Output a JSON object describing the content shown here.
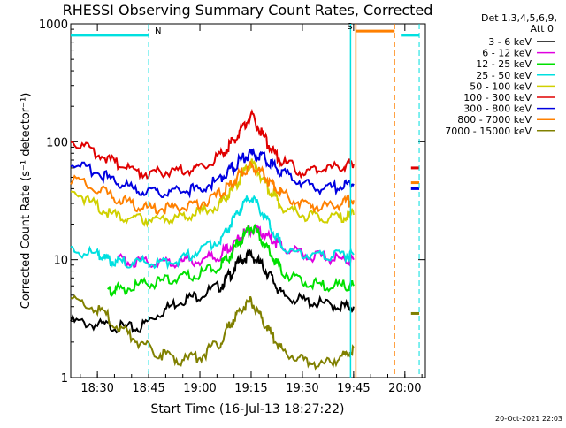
{
  "chart_data": {
    "type": "line",
    "title": "RHESSI Observing Summary Count Rates, Corrected",
    "xlabel": "Start Time (16-Jul-13 18:27:22)",
    "ylabel": "Corrected Count Rate (s⁻¹ detector⁻¹)",
    "ylim": [
      1,
      1000
    ],
    "yscale": "log",
    "xlim_minutes": [
      18.37,
      20.1
    ],
    "x_tick_labels": [
      "18:30",
      "18:45",
      "19:00",
      "19:15",
      "19:30",
      "19:45",
      "20:00"
    ],
    "x_tick_hours": [
      18.5,
      18.75,
      19.0,
      19.25,
      19.5,
      19.75,
      20.0
    ],
    "y_tick_labels": [
      "1",
      "10",
      "100",
      "1000"
    ],
    "y_tick_values": [
      1,
      10,
      100,
      1000
    ],
    "legend_header": [
      "Det 1,3,4,5,6,9,",
      "Att 0"
    ],
    "legend_position": "right",
    "series": [
      {
        "name": "3 - 6 keV",
        "color": "#000000",
        "x": [
          18.37,
          18.5,
          18.6,
          18.7,
          18.8,
          18.9,
          19.0,
          19.1,
          19.15,
          19.2,
          19.25,
          19.3,
          19.35,
          19.4,
          19.5,
          19.6,
          19.7,
          19.75
        ],
        "y": [
          3.0,
          2.8,
          2.7,
          2.6,
          3.5,
          4.5,
          5.0,
          6.0,
          7.5,
          10,
          11,
          9,
          7,
          5,
          4.5,
          4.2,
          4.0,
          4.0
        ]
      },
      {
        "name": "6 - 12 keV",
        "color": "#e000e0",
        "x": [
          18.6,
          18.7,
          18.8,
          18.9,
          19.0,
          19.1,
          19.15,
          19.2,
          19.25,
          19.3,
          19.35,
          19.4,
          19.5,
          19.6,
          19.7,
          19.75
        ],
        "y": [
          10,
          9.5,
          9.5,
          9.5,
          10,
          11,
          13,
          16,
          18,
          17,
          15,
          13,
          11,
          10.5,
          10,
          10
        ]
      },
      {
        "name": "12 - 25 keV",
        "color": "#00e000",
        "x": [
          18.55,
          18.6,
          18.7,
          18.8,
          18.9,
          19.0,
          19.1,
          19.15,
          19.2,
          19.25,
          19.3,
          19.35,
          19.4,
          19.5,
          19.6,
          19.7,
          19.75
        ],
        "y": [
          5.5,
          5.6,
          6.0,
          6.5,
          7.0,
          7.5,
          9,
          11,
          15,
          19,
          15,
          11,
          8,
          6.5,
          6.0,
          6.0,
          6.0
        ]
      },
      {
        "name": "25 - 50 keV",
        "color": "#00e0e0",
        "x": [
          18.37,
          18.5,
          18.55,
          18.6,
          18.7,
          18.8,
          18.9,
          19.0,
          19.1,
          19.15,
          19.2,
          19.25,
          19.3,
          19.35,
          19.4,
          19.5,
          19.6,
          19.7,
          19.75
        ],
        "y": [
          12,
          11,
          10,
          9.5,
          9.5,
          9.5,
          10,
          12,
          15,
          20,
          27,
          35,
          26,
          18,
          13,
          11,
          11,
          11,
          11
        ]
      },
      {
        "name": "50 - 100 keV",
        "color": "#d0d000",
        "x": [
          18.37,
          18.5,
          18.6,
          18.7,
          18.8,
          18.9,
          19.0,
          19.1,
          19.15,
          19.2,
          19.25,
          19.3,
          19.35,
          19.4,
          19.5,
          19.6,
          19.7,
          19.75
        ],
        "y": [
          40,
          28,
          23,
          22,
          22,
          23,
          25,
          30,
          38,
          50,
          68,
          50,
          37,
          28,
          24,
          23,
          23,
          24
        ]
      },
      {
        "name": "100 - 300 keV",
        "color": "#e00000",
        "x": [
          18.37,
          18.5,
          18.6,
          18.7,
          18.8,
          18.9,
          19.0,
          19.1,
          19.15,
          19.2,
          19.25,
          19.3,
          19.35,
          19.4,
          19.5,
          19.6,
          19.7,
          19.75
        ],
        "y": [
          105,
          80,
          65,
          55,
          55,
          56,
          60,
          75,
          95,
          125,
          165,
          120,
          85,
          68,
          56,
          58,
          62,
          65
        ]
      },
      {
        "name": "300 - 800 keV",
        "color": "#0000e0",
        "x": [
          18.37,
          18.5,
          18.6,
          18.7,
          18.8,
          18.9,
          19.0,
          19.1,
          19.15,
          19.2,
          19.25,
          19.3,
          19.35,
          19.4,
          19.5,
          19.6,
          19.7,
          19.75
        ],
        "y": [
          65,
          55,
          45,
          38,
          37,
          38,
          40,
          48,
          58,
          70,
          80,
          75,
          65,
          55,
          45,
          40,
          42,
          44
        ]
      },
      {
        "name": "800 - 7000 keV",
        "color": "#ff8000",
        "x": [
          18.37,
          18.5,
          18.6,
          18.7,
          18.8,
          18.9,
          19.0,
          19.1,
          19.15,
          19.2,
          19.25,
          19.3,
          19.35,
          19.4,
          19.5,
          19.6,
          19.7,
          19.75
        ],
        "y": [
          48,
          40,
          33,
          28,
          27,
          28,
          30,
          36,
          44,
          54,
          62,
          55,
          44,
          36,
          30,
          28,
          30,
          32
        ]
      },
      {
        "name": "7000 - 15000 keV",
        "color": "#808000",
        "x": [
          18.37,
          18.5,
          18.6,
          18.7,
          18.8,
          18.9,
          19.0,
          19.1,
          19.15,
          19.2,
          19.25,
          19.3,
          19.35,
          19.4,
          19.5,
          19.6,
          19.7,
          19.75
        ],
        "y": [
          4.5,
          3.8,
          2.8,
          2.0,
          1.6,
          1.4,
          1.5,
          2.0,
          2.8,
          3.8,
          4.5,
          3.2,
          2.3,
          1.7,
          1.4,
          1.3,
          1.5,
          1.8
        ]
      }
    ],
    "late_segments": [
      {
        "color": "#e00000",
        "x": [
          20.03,
          20.07
        ],
        "y": [
          60,
          60
        ]
      },
      {
        "color": "#0000e0",
        "x": [
          20.03,
          20.07
        ],
        "y": [
          40,
          40
        ]
      },
      {
        "color": "#ff8000",
        "x": [
          20.03,
          20.07
        ],
        "y": [
          45,
          45
        ]
      },
      {
        "color": "#808000",
        "x": [
          20.03,
          20.07
        ],
        "y": [
          3.5,
          3.5
        ]
      }
    ],
    "annotations": [
      {
        "text": "N",
        "color": "#00e0e0",
        "x_hour": 18.78,
        "bar_from": 18.37,
        "bar_to": 18.75,
        "bar_y": 800
      },
      {
        "text": "S",
        "color": "#ff8000",
        "x_hour": 19.735
      }
    ],
    "footer": "20-Oct-2021 22:03"
  }
}
